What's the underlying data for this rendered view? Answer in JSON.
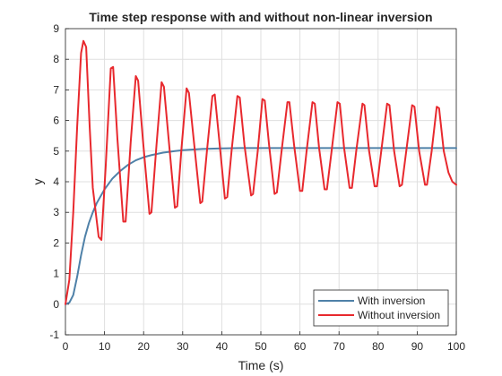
{
  "chart_data": {
    "type": "line",
    "title": "Time step response with and without non-linear inversion",
    "xlabel": "Time (s)",
    "ylabel": "y",
    "xlim": [
      0,
      100
    ],
    "ylim": [
      -1,
      9
    ],
    "xticks": [
      0,
      10,
      20,
      30,
      40,
      50,
      60,
      70,
      80,
      90,
      100
    ],
    "yticks": [
      -1,
      0,
      1,
      2,
      3,
      4,
      5,
      6,
      7,
      8,
      9
    ],
    "grid": true,
    "legend_position": "bottom-right",
    "series": [
      {
        "name": "With inversion",
        "color": "#4f81a8",
        "x": [
          0,
          1,
          2,
          3,
          4,
          5,
          6,
          7,
          8,
          10,
          12,
          14,
          16,
          18,
          20,
          22,
          25,
          28,
          30,
          35,
          40,
          45,
          50,
          60,
          70,
          80,
          90,
          100
        ],
        "y": [
          0,
          0.05,
          0.3,
          0.9,
          1.6,
          2.2,
          2.65,
          3.0,
          3.3,
          3.75,
          4.1,
          4.35,
          4.55,
          4.7,
          4.8,
          4.87,
          4.95,
          5.0,
          5.03,
          5.07,
          5.09,
          5.1,
          5.1,
          5.1,
          5.1,
          5.1,
          5.1,
          5.1
        ]
      },
      {
        "name": "Without inversion",
        "color": "#e8292e",
        "x": [
          0,
          1,
          2,
          3,
          4,
          4.6,
          5.3,
          6.2,
          7,
          8.5,
          9.2,
          10.3,
          11.6,
          12.2,
          13.3,
          14.8,
          15.4,
          16.7,
          18,
          18.6,
          19.8,
          21.5,
          22,
          23.3,
          24.6,
          25.2,
          26.4,
          28,
          28.6,
          29.7,
          31,
          31.6,
          32.8,
          34.5,
          35,
          36.2,
          37.6,
          38.2,
          39.4,
          40.8,
          41.4,
          42.5,
          44,
          44.6,
          45.8,
          47.5,
          48,
          49.2,
          50.4,
          51,
          52.1,
          53.5,
          54.1,
          55.3,
          56.8,
          57.3,
          58.5,
          60,
          60.6,
          61.7,
          63.2,
          63.8,
          64.9,
          66.3,
          66.9,
          68.1,
          69.6,
          70.2,
          71.3,
          72.7,
          73.3,
          74.4,
          76,
          76.5,
          77.7,
          79.1,
          79.7,
          80.8,
          82.3,
          82.9,
          84.1,
          85.5,
          86.1,
          87.2,
          88.7,
          89.3,
          90.5,
          92,
          92.5,
          93.7,
          95,
          95.6,
          96.8,
          98,
          99,
          100
        ],
        "y": [
          0,
          0.8,
          3.0,
          5.8,
          8.2,
          8.6,
          8.4,
          5.8,
          3.8,
          2.2,
          2.1,
          4.5,
          7.7,
          7.75,
          5.4,
          2.7,
          2.7,
          5.3,
          7.45,
          7.3,
          5.4,
          2.95,
          3.0,
          5.2,
          7.25,
          7.1,
          5.4,
          3.15,
          3.2,
          5.1,
          7.05,
          6.9,
          5.4,
          3.3,
          3.35,
          5.0,
          6.8,
          6.85,
          5.3,
          3.45,
          3.5,
          5.0,
          6.8,
          6.75,
          5.2,
          3.55,
          3.6,
          5.0,
          6.7,
          6.65,
          5.2,
          3.6,
          3.65,
          5.0,
          6.6,
          6.6,
          5.2,
          3.7,
          3.7,
          5.0,
          6.6,
          6.55,
          5.1,
          3.75,
          3.75,
          5.0,
          6.6,
          6.55,
          5.1,
          3.8,
          3.8,
          5.0,
          6.55,
          6.5,
          5.0,
          3.85,
          3.85,
          5.0,
          6.55,
          6.5,
          5.0,
          3.85,
          3.9,
          5.0,
          6.5,
          6.45,
          5.0,
          3.9,
          3.9,
          5.0,
          6.45,
          6.4,
          5.0,
          4.3,
          4.0,
          3.9
        ]
      }
    ]
  }
}
